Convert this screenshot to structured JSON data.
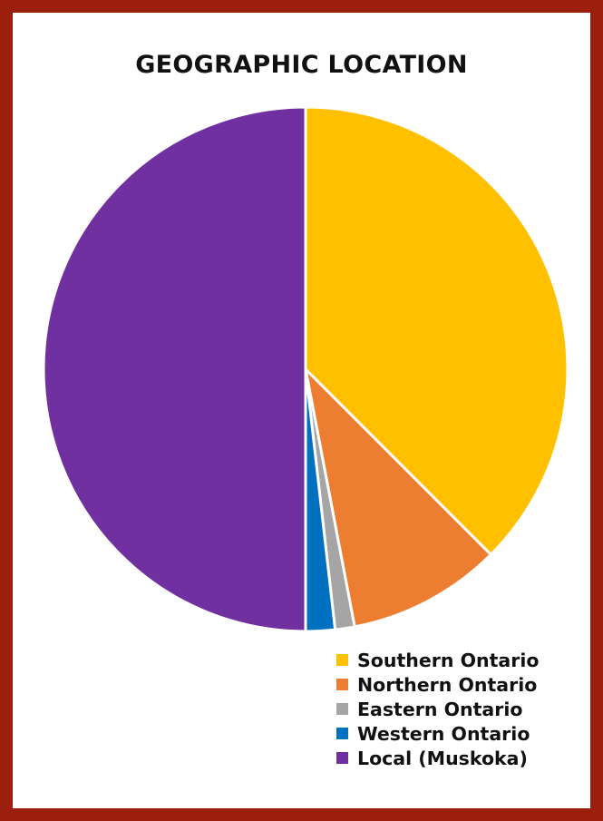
{
  "chart_data": {
    "type": "pie",
    "title": "GEOGRAPHIC LOCATION",
    "series": [
      {
        "name": "Southern Ontario",
        "value": 37.5,
        "color": "#FFC000"
      },
      {
        "name": "Northern Ontario",
        "value": 9.5,
        "color": "#ED7D31"
      },
      {
        "name": "Eastern Ontario",
        "value": 1.2,
        "color": "#A5A5A5"
      },
      {
        "name": "Western Ontario",
        "value": 1.8,
        "color": "#0070C0"
      },
      {
        "name": "Local (Muskoka)",
        "value": 50.0,
        "color": "#7030A0"
      }
    ],
    "legend_position": "bottom-right",
    "start_angle": "12 o'clock",
    "direction": "clockwise"
  }
}
